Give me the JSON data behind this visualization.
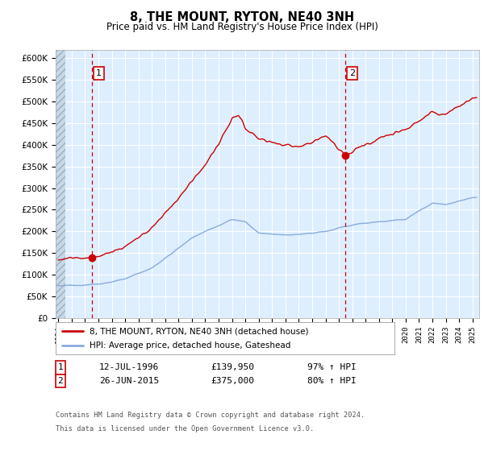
{
  "title": "8, THE MOUNT, RYTON, NE40 3NH",
  "subtitle": "Price paid vs. HM Land Registry's House Price Index (HPI)",
  "ylim": [
    0,
    620000
  ],
  "yticks": [
    0,
    50000,
    100000,
    150000,
    200000,
    250000,
    300000,
    350000,
    400000,
    450000,
    500000,
    550000,
    600000
  ],
  "ytick_labels": [
    "£0",
    "£50K",
    "£100K",
    "£150K",
    "£200K",
    "£250K",
    "£300K",
    "£350K",
    "£400K",
    "£450K",
    "£500K",
    "£550K",
    "£600K"
  ],
  "xlim_start": 1993.8,
  "xlim_end": 2025.5,
  "background_color": "#ddeeff",
  "line1_color": "#cc0000",
  "line2_color": "#88aadd",
  "sale1_year": 1996.53,
  "sale1_price": 139950,
  "sale2_year": 2015.48,
  "sale2_price": 375000,
  "legend1_label": "8, THE MOUNT, RYTON, NE40 3NH (detached house)",
  "legend2_label": "HPI: Average price, detached house, Gateshead",
  "sale1_date": "12-JUL-1996",
  "sale1_info": "£139,950",
  "sale1_pct": "97% ↑ HPI",
  "sale2_date": "26-JUN-2015",
  "sale2_info": "£375,000",
  "sale2_pct": "80% ↑ HPI",
  "footnote1": "Contains HM Land Registry data © Crown copyright and database right 2024.",
  "footnote2": "This data is licensed under the Open Government Licence v3.0."
}
